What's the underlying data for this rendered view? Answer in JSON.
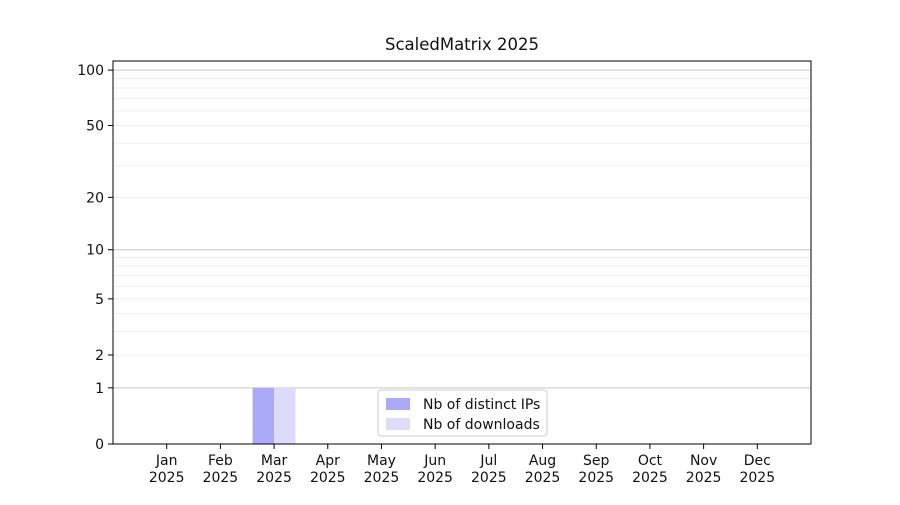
{
  "page": {
    "background": "#ffffff"
  },
  "chart_data": {
    "type": "bar",
    "title": "ScaledMatrix 2025",
    "categories": [
      "Jan 2025",
      "Feb 2025",
      "Mar 2025",
      "Apr 2025",
      "May 2025",
      "Jun 2025",
      "Jul 2025",
      "Aug 2025",
      "Sep 2025",
      "Oct 2025",
      "Nov 2025",
      "Dec 2025"
    ],
    "series": [
      {
        "name": "Nb of distinct IPs",
        "color": "#aaaaf8",
        "values": [
          0,
          0,
          1,
          0,
          0,
          0,
          0,
          0,
          0,
          0,
          0,
          0
        ]
      },
      {
        "name": "Nb of downloads",
        "color": "#dcdcfa",
        "values": [
          0,
          0,
          1,
          0,
          0,
          0,
          0,
          0,
          0,
          0,
          0,
          0
        ]
      }
    ],
    "xlabel": "",
    "ylabel": "",
    "yscale": "log10(value+1)",
    "ylim": [
      0,
      112
    ],
    "yticks": [
      0,
      1,
      2,
      5,
      10,
      20,
      50,
      100
    ],
    "grid": {
      "major_values": [
        1,
        10,
        100
      ],
      "minor_values": [
        2,
        3,
        4,
        5,
        6,
        7,
        8,
        9,
        20,
        30,
        40,
        50,
        60,
        70,
        80,
        90
      ],
      "major_color": "#c9c9c9",
      "minor_color": "#ededed"
    },
    "legend": {
      "entries": [
        "Nb of distinct IPs",
        "Nb of downloads"
      ],
      "position": "lower center",
      "border_color": "#cccccc",
      "background": "#ffffff"
    },
    "style": {
      "spine_color": "#000000",
      "text_color": "#111111"
    }
  }
}
